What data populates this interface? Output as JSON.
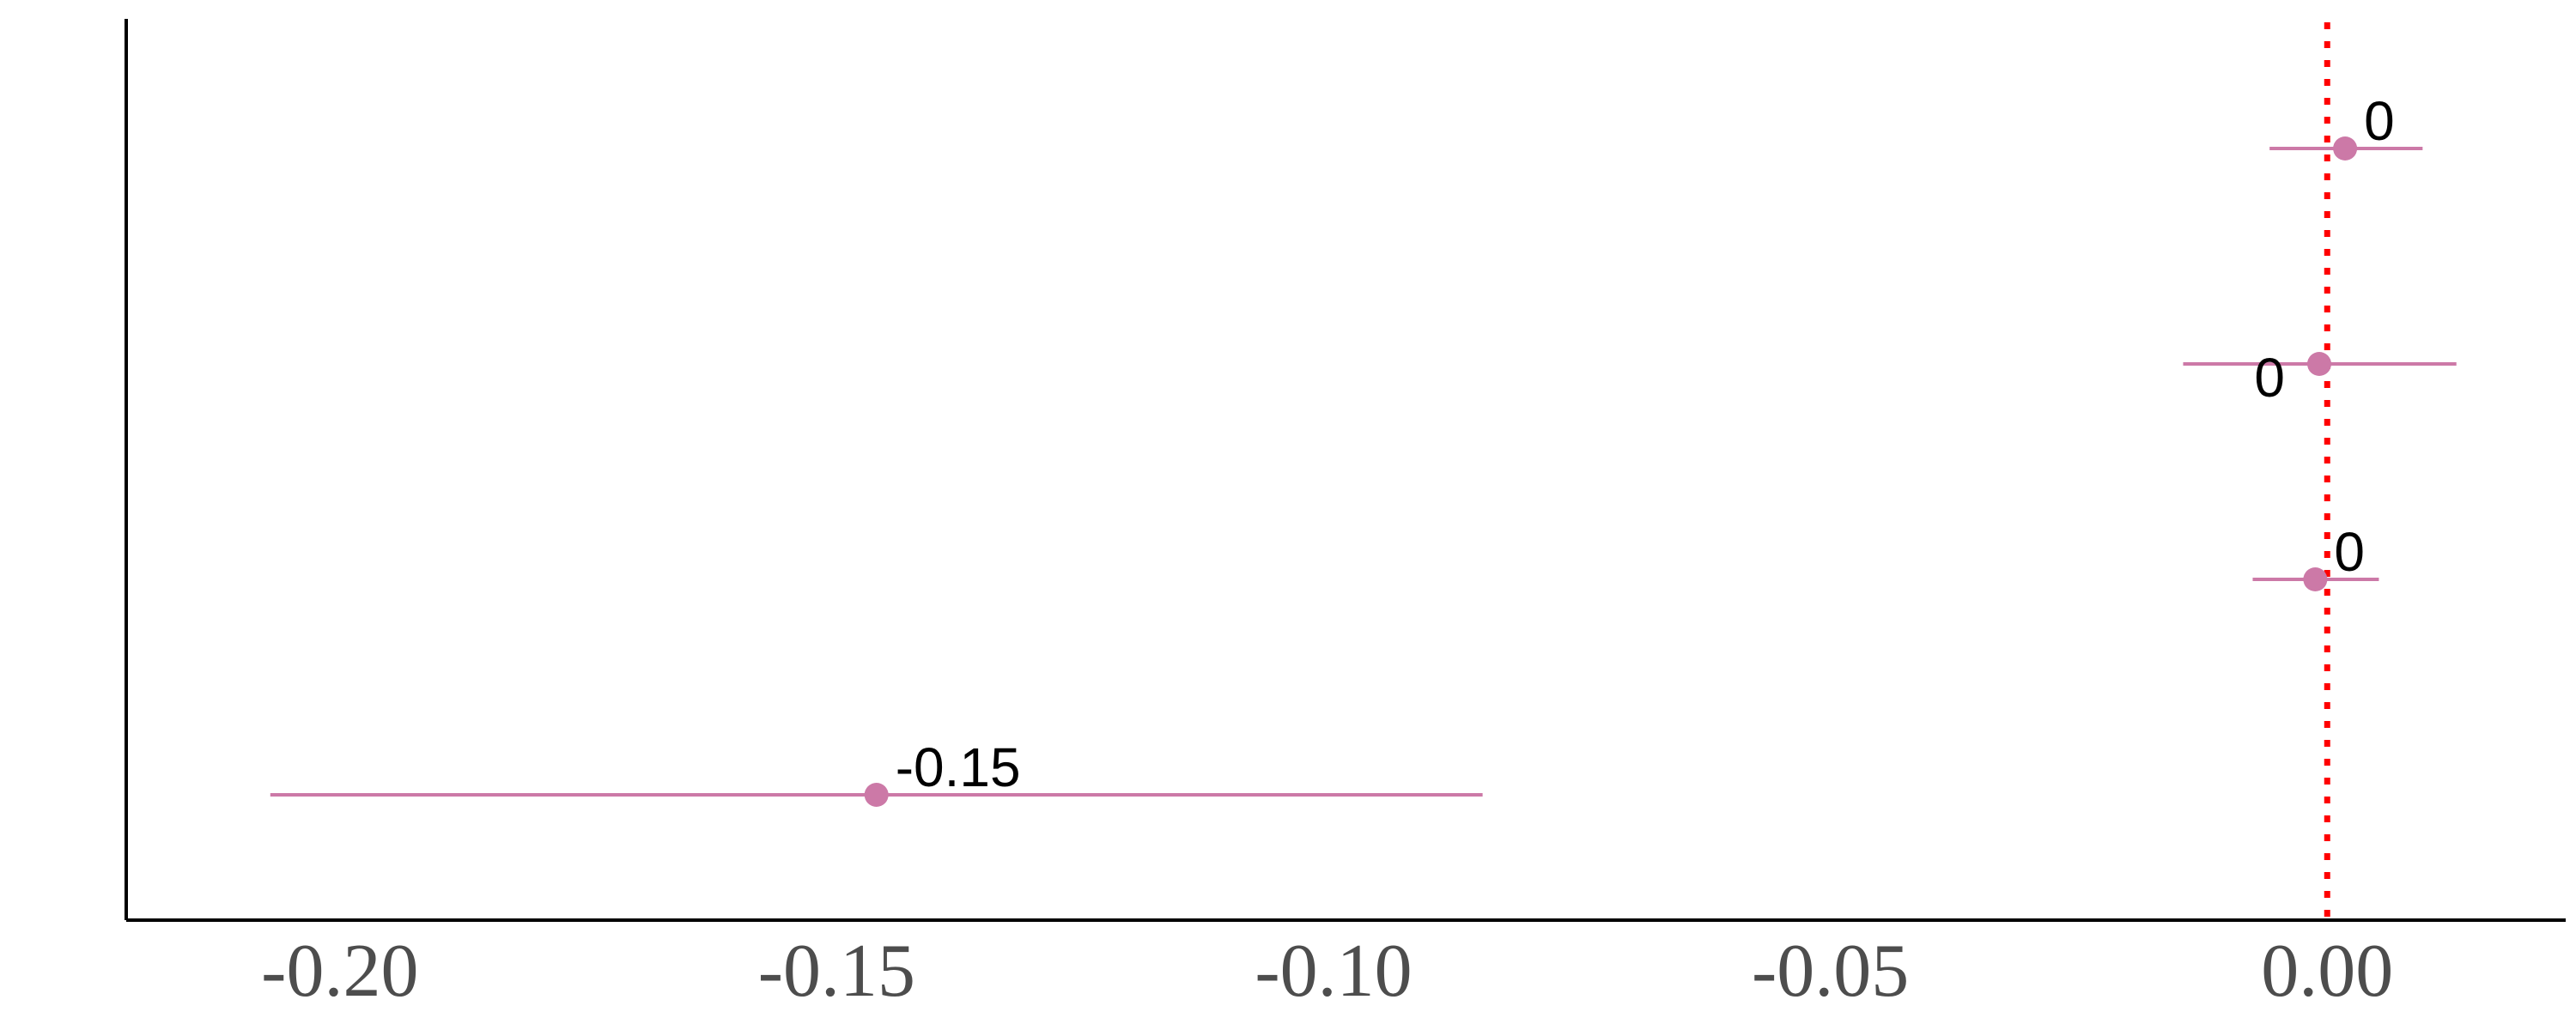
{
  "chart_data": {
    "type": "forest",
    "title": "",
    "xlabel": "",
    "ylabel": "",
    "xlim": [
      -0.2215,
      0.024
    ],
    "xticks": [
      -0.2,
      -0.15,
      -0.1,
      -0.05,
      0.0
    ],
    "xtick_labels": [
      "-0.20",
      "-0.15",
      "-0.10",
      "-0.05",
      "0.00"
    ],
    "reference_line": {
      "x": 0.0,
      "style": "dotted",
      "color": "#ff0000"
    },
    "points": [
      {
        "estimate": 0.0018,
        "lower": -0.0058,
        "upper": 0.0096,
        "label": "0",
        "label_side": "right"
      },
      {
        "estimate": -0.0008,
        "lower": -0.0145,
        "upper": 0.013,
        "label": "0",
        "label_side": "left"
      },
      {
        "estimate": -0.0012,
        "lower": -0.0075,
        "upper": 0.0052,
        "label": "0",
        "label_side": "right"
      },
      {
        "estimate": -0.146,
        "lower": -0.207,
        "upper": -0.085,
        "label": "-0.15",
        "label_side": "right"
      }
    ],
    "colors": {
      "series": "#cc79a7",
      "axis": "#000000",
      "tick_text": "#4d4d4d"
    }
  }
}
